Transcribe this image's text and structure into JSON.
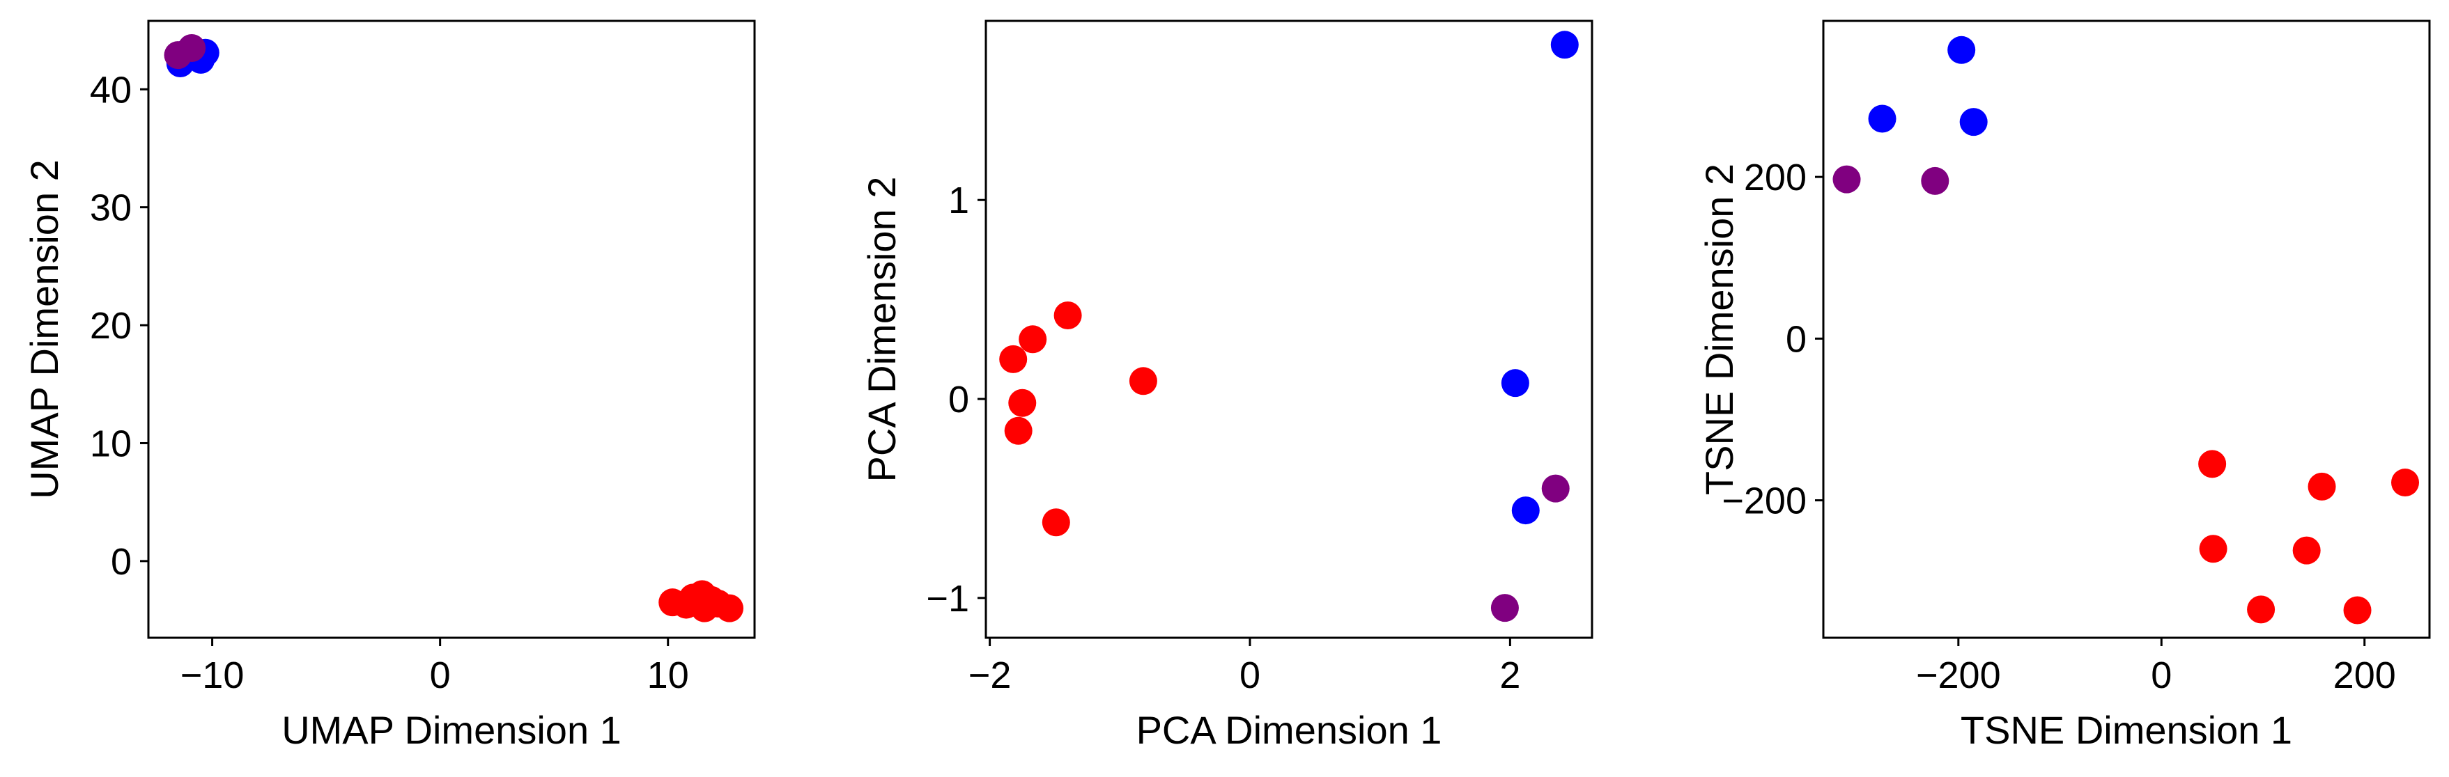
{
  "chart_data": [
    {
      "type": "scatter",
      "xlabel": "UMAP Dimension 1",
      "ylabel": "UMAP Dimension 2",
      "xlim": [
        -12.8,
        13.8
      ],
      "ylim": [
        -6.5,
        45.8
      ],
      "xticks": [
        -10,
        0,
        10
      ],
      "yticks": [
        0,
        10,
        20,
        30,
        40
      ],
      "xtick_labels": [
        "−10",
        "0",
        "10"
      ],
      "ytick_labels": [
        "0",
        "10",
        "20",
        "30",
        "40"
      ],
      "points": [
        {
          "x": -11.4,
          "y": 42.2,
          "color": "#0000ff"
        },
        {
          "x": -10.5,
          "y": 42.5,
          "color": "#0000ff"
        },
        {
          "x": -10.3,
          "y": 43.1,
          "color": "#0000ff"
        },
        {
          "x": -11.2,
          "y": 43.0,
          "color": "#0000ff"
        },
        {
          "x": -11.5,
          "y": 42.9,
          "color": "#800080"
        },
        {
          "x": -10.9,
          "y": 43.5,
          "color": "#800080"
        },
        {
          "x": 10.2,
          "y": -3.5,
          "color": "#ff0000"
        },
        {
          "x": 10.8,
          "y": -3.7,
          "color": "#ff0000"
        },
        {
          "x": 11.1,
          "y": -3.1,
          "color": "#ff0000"
        },
        {
          "x": 11.5,
          "y": -2.8,
          "color": "#ff0000"
        },
        {
          "x": 11.9,
          "y": -3.3,
          "color": "#ff0000"
        },
        {
          "x": 11.6,
          "y": -4.0,
          "color": "#ff0000"
        },
        {
          "x": 12.2,
          "y": -3.6,
          "color": "#ff0000"
        },
        {
          "x": 12.7,
          "y": -4.0,
          "color": "#ff0000"
        }
      ]
    },
    {
      "type": "scatter",
      "xlabel": "PCA Dimension 1",
      "ylabel": "PCA Dimension 2",
      "xlim": [
        -2.03,
        2.63
      ],
      "ylim": [
        -1.2,
        1.9
      ],
      "xticks": [
        -2,
        0,
        2
      ],
      "yticks": [
        -1,
        0,
        1
      ],
      "xtick_labels": [
        "−2",
        "0",
        "2"
      ],
      "ytick_labels": [
        "−1",
        "0",
        "1"
      ],
      "points": [
        {
          "x": -1.82,
          "y": 0.2,
          "color": "#ff0000"
        },
        {
          "x": -1.67,
          "y": 0.3,
          "color": "#ff0000"
        },
        {
          "x": -1.4,
          "y": 0.42,
          "color": "#ff0000"
        },
        {
          "x": -1.75,
          "y": -0.02,
          "color": "#ff0000"
        },
        {
          "x": -1.78,
          "y": -0.16,
          "color": "#ff0000"
        },
        {
          "x": -0.82,
          "y": 0.09,
          "color": "#ff0000"
        },
        {
          "x": -1.49,
          "y": -0.62,
          "color": "#ff0000"
        },
        {
          "x": 2.42,
          "y": 1.78,
          "color": "#0000ff"
        },
        {
          "x": 2.04,
          "y": 0.08,
          "color": "#0000ff"
        },
        {
          "x": 2.12,
          "y": -0.56,
          "color": "#0000ff"
        },
        {
          "x": 2.35,
          "y": -0.45,
          "color": "#800080"
        },
        {
          "x": 1.96,
          "y": -1.05,
          "color": "#800080"
        }
      ]
    },
    {
      "type": "scatter",
      "xlabel": "TSNE Dimension 1",
      "ylabel": "TSNE Dimension 2",
      "xlim": [
        -333,
        264
      ],
      "ylim": [
        -370,
        393
      ],
      "xticks": [
        -200,
        0,
        200
      ],
      "yticks": [
        -200,
        0,
        200
      ],
      "xtick_labels": [
        "−200",
        "0",
        "200"
      ],
      "ytick_labels": [
        "−200",
        "0",
        "200"
      ],
      "points": [
        {
          "x": -197,
          "y": 357,
          "color": "#0000ff"
        },
        {
          "x": -275,
          "y": 272,
          "color": "#0000ff"
        },
        {
          "x": -185,
          "y": 268,
          "color": "#0000ff"
        },
        {
          "x": -310,
          "y": 197,
          "color": "#800080"
        },
        {
          "x": -223,
          "y": 195,
          "color": "#800080"
        },
        {
          "x": 50,
          "y": -155,
          "color": "#ff0000"
        },
        {
          "x": 158,
          "y": -183,
          "color": "#ff0000"
        },
        {
          "x": 240,
          "y": -178,
          "color": "#ff0000"
        },
        {
          "x": 51,
          "y": -260,
          "color": "#ff0000"
        },
        {
          "x": 143,
          "y": -262,
          "color": "#ff0000"
        },
        {
          "x": 98,
          "y": -335,
          "color": "#ff0000"
        },
        {
          "x": 193,
          "y": -336,
          "color": "#ff0000"
        }
      ]
    }
  ]
}
